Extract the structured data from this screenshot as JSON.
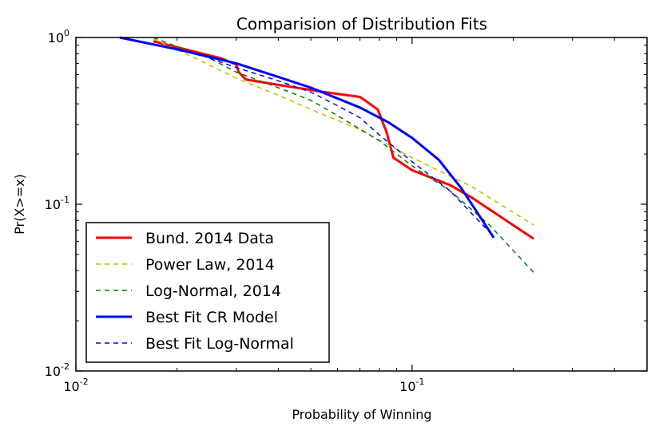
{
  "chart_data": {
    "type": "line",
    "title": "Comparision of Distribution Fits",
    "xlabel": "Probability of Winning",
    "ylabel": "Pr(X>=x)",
    "xscale": "log",
    "yscale": "log",
    "xlim": [
      0.01,
      0.5
    ],
    "ylim": [
      0.01,
      1
    ],
    "xticks": [
      {
        "value": 0.01,
        "base": "10",
        "exp": "-2"
      },
      {
        "value": 0.1,
        "base": "10",
        "exp": "-1"
      }
    ],
    "yticks": [
      {
        "value": 0.01,
        "base": "10",
        "exp": "-2"
      },
      {
        "value": 0.1,
        "base": "10",
        "exp": "-1"
      },
      {
        "value": 1,
        "base": "10",
        "exp": "0"
      }
    ],
    "legend_position": "lower-left",
    "series": [
      {
        "name": "Bund. 2014 Data",
        "color": "#ff0000",
        "style": "solid",
        "width": 3,
        "points": [
          [
            0.017,
            0.95
          ],
          [
            0.027,
            0.75
          ],
          [
            0.03,
            0.69
          ],
          [
            0.0305,
            0.62
          ],
          [
            0.032,
            0.56
          ],
          [
            0.04,
            0.52
          ],
          [
            0.055,
            0.47
          ],
          [
            0.07,
            0.44
          ],
          [
            0.079,
            0.37
          ],
          [
            0.084,
            0.27
          ],
          [
            0.088,
            0.19
          ],
          [
            0.1,
            0.16
          ],
          [
            0.13,
            0.13
          ],
          [
            0.15,
            0.11
          ],
          [
            0.23,
            0.062
          ]
        ]
      },
      {
        "name": "Power Law, 2014",
        "color": "#bfbf00",
        "style": "dashed",
        "width": 1.5,
        "points": [
          [
            0.017,
            0.98
          ],
          [
            0.023,
            0.74
          ],
          [
            0.03,
            0.57
          ],
          [
            0.04,
            0.45
          ],
          [
            0.05,
            0.37
          ],
          [
            0.07,
            0.28
          ],
          [
            0.1,
            0.19
          ],
          [
            0.15,
            0.128
          ],
          [
            0.23,
            0.075
          ]
        ]
      },
      {
        "name": "Log-Normal, 2014",
        "color": "#007f00",
        "style": "dashed",
        "width": 1.5,
        "points": [
          [
            0.017,
            1.0
          ],
          [
            0.02,
            0.88
          ],
          [
            0.025,
            0.75
          ],
          [
            0.03,
            0.62
          ],
          [
            0.04,
            0.5
          ],
          [
            0.05,
            0.42
          ],
          [
            0.06,
            0.34
          ],
          [
            0.08,
            0.24
          ],
          [
            0.1,
            0.17
          ],
          [
            0.13,
            0.12
          ],
          [
            0.17,
            0.075
          ],
          [
            0.23,
            0.039
          ]
        ]
      },
      {
        "name": "Best Fit CR Model",
        "color": "#0000ff",
        "style": "solid",
        "width": 3,
        "points": [
          [
            0.0135,
            1.0
          ],
          [
            0.02,
            0.85
          ],
          [
            0.03,
            0.7
          ],
          [
            0.04,
            0.58
          ],
          [
            0.05,
            0.5
          ],
          [
            0.07,
            0.38
          ],
          [
            0.085,
            0.31
          ],
          [
            0.1,
            0.25
          ],
          [
            0.12,
            0.185
          ],
          [
            0.14,
            0.125
          ],
          [
            0.175,
            0.063
          ]
        ]
      },
      {
        "name": "Best Fit Log-Normal",
        "color": "#0000ff",
        "style": "dashed",
        "width": 1.5,
        "points": [
          [
            0.025,
            0.75
          ],
          [
            0.03,
            0.66
          ],
          [
            0.04,
            0.55
          ],
          [
            0.05,
            0.47
          ],
          [
            0.06,
            0.39
          ],
          [
            0.07,
            0.33
          ],
          [
            0.08,
            0.26
          ],
          [
            0.1,
            0.18
          ],
          [
            0.13,
            0.12
          ],
          [
            0.17,
            0.068
          ]
        ]
      }
    ]
  }
}
